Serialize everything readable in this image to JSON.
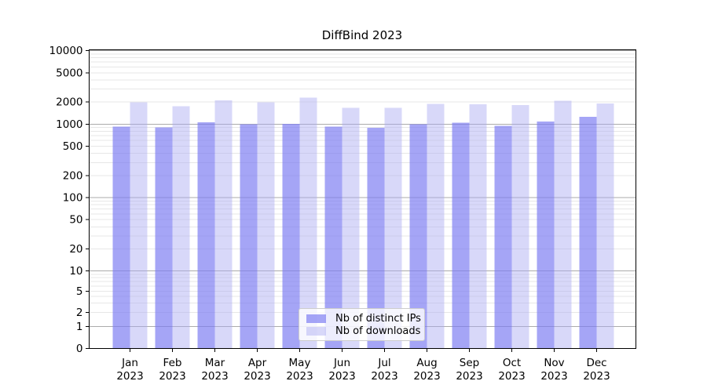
{
  "page": {
    "background": "#ffffff"
  },
  "chart_data": {
    "type": "bar",
    "title": "DiffBind 2023",
    "categories": [
      "Jan",
      "Feb",
      "Mar",
      "Apr",
      "May",
      "Jun",
      "Jul",
      "Aug",
      "Sep",
      "Oct",
      "Nov",
      "Dec"
    ],
    "x_tick_line2": "2023",
    "series": [
      {
        "name": "Nb of distinct IPs",
        "color": "#7b7bf2",
        "fill_alpha": 0.68,
        "values": [
          920,
          900,
          1060,
          990,
          1010,
          920,
          890,
          990,
          1050,
          945,
          1090,
          1250
        ]
      },
      {
        "name": "Nb of downloads",
        "color": "#a8a8f2",
        "fill_alpha": 0.45,
        "values": [
          1980,
          1750,
          2100,
          1980,
          2300,
          1670,
          1660,
          1890,
          1860,
          1820,
          2080,
          1920
        ]
      }
    ],
    "y_axis": {
      "scale": "log",
      "range": [
        0,
        10000
      ],
      "ticks": [
        0,
        1,
        2,
        5,
        10,
        20,
        50,
        100,
        200,
        500,
        1000,
        2000,
        5000,
        10000
      ]
    },
    "x_axis": {
      "label": "",
      "tick_years": "2023"
    },
    "legend": {
      "position": "lower-center"
    },
    "grid": {
      "major_color": "#ababab",
      "minor_color": "#e7e7e7"
    },
    "text_color": "#000000",
    "spine_color": "#000000"
  }
}
